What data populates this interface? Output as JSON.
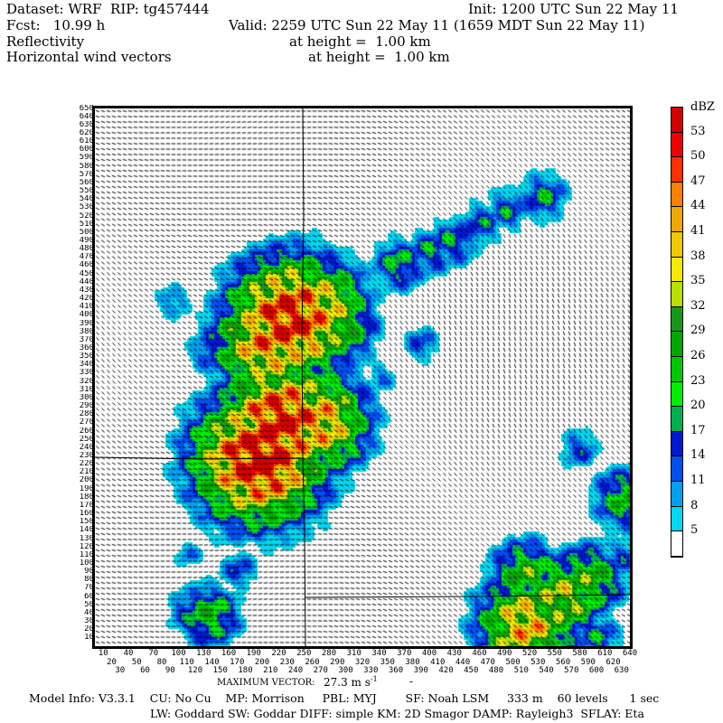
{
  "header": {
    "dataset": "Dataset: WRF  RIP: tg457444",
    "init": "Init: 1200 UTC Sun 22 May 11",
    "fcst": "Fcst:   10.99 h",
    "valid": "Valid: 2259 UTC Sun 22 May 11 (1659 MDT Sun 22 May 11)",
    "field1": "Reflectivity",
    "field1_height": "at height =  1.00 km",
    "field2": "Horizontal wind vectors",
    "field2_height": "at height =  1.00 km"
  },
  "footer": {
    "max_vector_label": "MAXIMUM VECTOR:",
    "max_vector_value": "27.3 m s",
    "max_vector_exp": "-1",
    "model_info_1": "Model Info: V3.3.1    CU: No Cu    MP: Morrison     PBL: MYJ        SF: Noah LSM     333 m    60 levels      1 sec",
    "model_info_2": "LW: Goddard SW: Goddar DIFF: simple KM: 2D Smagor DAMP: Rayleigh3  SFLAY: Eta"
  },
  "colorbar": {
    "unit": "dBZ",
    "labels": [
      "53",
      "50",
      "47",
      "44",
      "41",
      "38",
      "35",
      "32",
      "29",
      "26",
      "23",
      "20",
      "17",
      "14",
      "11",
      "8",
      "5"
    ],
    "colors": [
      "#d40000",
      "#f00000",
      "#ff3000",
      "#ff8000",
      "#f0a800",
      "#f0c800",
      "#f8e800",
      "#b8e000",
      "#189818",
      "#00a800",
      "#00c800",
      "#00f000",
      "#00b050",
      "#0018d0",
      "#0050f0",
      "#00a0f0",
      "#00d8f0",
      "#ffffff"
    ]
  },
  "chart_data": {
    "type": "heatmap",
    "x_ticks": [
      10,
      20,
      30,
      40,
      50,
      60,
      70,
      80,
      90,
      100,
      110,
      120,
      130,
      140,
      150,
      160,
      170,
      180,
      190,
      200,
      210,
      220,
      230,
      240,
      250,
      260,
      270,
      280,
      290,
      300,
      310,
      320,
      330,
      340,
      350,
      360,
      370,
      380,
      390,
      400,
      410,
      420,
      430,
      440,
      450,
      460,
      470,
      480,
      490,
      500,
      510,
      520,
      530,
      540,
      550,
      560,
      570,
      580,
      590,
      600,
      610,
      620,
      630,
      640
    ],
    "y_ticks": [
      10,
      20,
      30,
      40,
      50,
      60,
      70,
      80,
      90,
      100,
      110,
      120,
      130,
      140,
      150,
      160,
      170,
      180,
      190,
      200,
      210,
      220,
      230,
      240,
      250,
      260,
      270,
      280,
      290,
      300,
      310,
      320,
      330,
      340,
      350,
      360,
      370,
      380,
      390,
      400,
      410,
      420,
      430,
      440,
      450,
      460,
      470,
      480,
      490,
      500,
      510,
      520,
      530,
      540,
      550,
      560,
      570,
      580,
      590,
      600,
      610,
      620,
      630,
      640,
      650
    ],
    "xlim": [
      0,
      640
    ],
    "ylim": [
      0,
      650
    ],
    "levels_dbz": [
      5,
      8,
      11,
      14,
      17,
      20,
      23,
      26,
      29,
      32,
      35,
      38,
      41,
      44,
      47,
      50,
      53
    ],
    "storm_cells": [
      {
        "x": 232,
        "y": 398,
        "dbz": 50
      },
      {
        "x": 265,
        "y": 410,
        "dbz": 38
      },
      {
        "x": 285,
        "y": 390,
        "dbz": 30
      },
      {
        "x": 205,
        "y": 370,
        "dbz": 42
      },
      {
        "x": 222,
        "y": 273,
        "dbz": 50
      },
      {
        "x": 265,
        "y": 273,
        "dbz": 40
      },
      {
        "x": 195,
        "y": 229,
        "dbz": 53
      },
      {
        "x": 250,
        "y": 320,
        "dbz": 22
      },
      {
        "x": 362,
        "y": 463,
        "dbz": 18
      },
      {
        "x": 400,
        "y": 478,
        "dbz": 16
      },
      {
        "x": 427,
        "y": 491,
        "dbz": 16
      },
      {
        "x": 460,
        "y": 512,
        "dbz": 14
      },
      {
        "x": 492,
        "y": 529,
        "dbz": 14
      },
      {
        "x": 535,
        "y": 545,
        "dbz": 16
      },
      {
        "x": 137,
        "y": 358,
        "dbz": 14
      },
      {
        "x": 92,
        "y": 418,
        "dbz": 10
      },
      {
        "x": 389,
        "y": 367,
        "dbz": 11
      },
      {
        "x": 341,
        "y": 327,
        "dbz": 9
      },
      {
        "x": 557,
        "y": 60,
        "dbz": 32
      },
      {
        "x": 514,
        "y": 87,
        "dbz": 26
      },
      {
        "x": 589,
        "y": 82,
        "dbz": 26
      },
      {
        "x": 514,
        "y": 27,
        "dbz": 38
      },
      {
        "x": 600,
        "y": 11,
        "dbz": 15
      },
      {
        "x": 632,
        "y": 180,
        "dbz": 22
      },
      {
        "x": 578,
        "y": 240,
        "dbz": 12
      },
      {
        "x": 135,
        "y": 38,
        "dbz": 22
      },
      {
        "x": 114,
        "y": 44,
        "dbz": 15
      },
      {
        "x": 170,
        "y": 93,
        "dbz": 12
      },
      {
        "x": 111,
        "y": 112,
        "dbz": 8
      },
      {
        "x": 150,
        "y": 245,
        "dbz": 20
      },
      {
        "x": 630,
        "y": 110,
        "dbz": 12
      }
    ],
    "wind_vectors": "horizontal wind vectors at 1.00 km"
  }
}
